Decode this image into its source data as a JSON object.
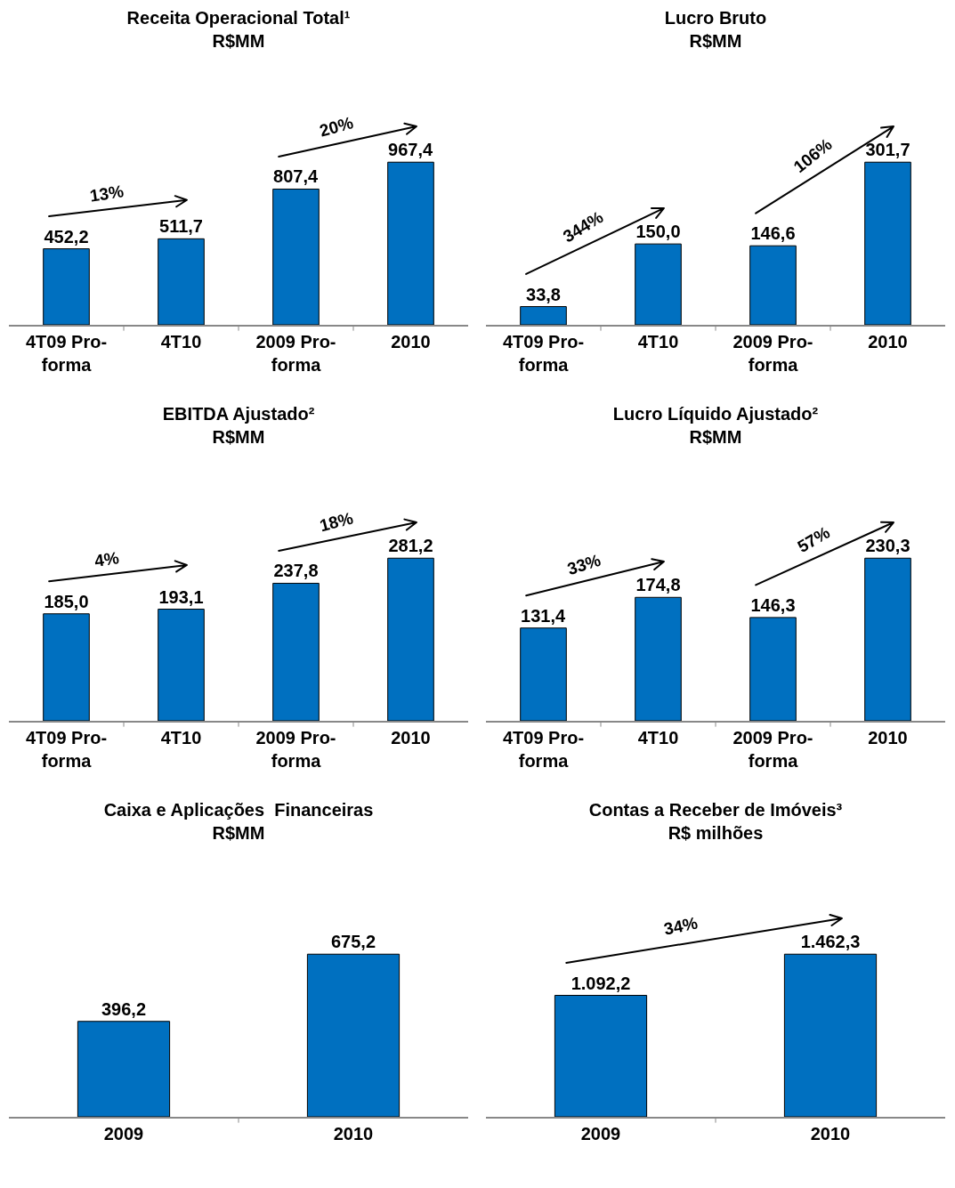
{
  "chart_data": [
    {
      "type": "bar",
      "title": "Receita Operacional Total¹",
      "subtitle": "R$MM",
      "categories": [
        "4T09 Pro-forma",
        "4T10",
        "2009 Pro-forma",
        "2010"
      ],
      "values": [
        452.2,
        511.7,
        807.4,
        967.4
      ],
      "value_labels": [
        "452,2",
        "511,7",
        "807,4",
        "967,4"
      ],
      "color": "#0070c0",
      "annotations": [
        "13%",
        "20%"
      ],
      "grid": false,
      "legend": false
    },
    {
      "type": "bar",
      "title": "Lucro Bruto",
      "subtitle": "R$MM",
      "categories": [
        "4T09 Pro-forma",
        "4T10",
        "2009 Pro-forma",
        "2010"
      ],
      "values": [
        33.8,
        150.0,
        146.6,
        301.7
      ],
      "value_labels": [
        "33,8",
        "150,0",
        "146,6",
        "301,7"
      ],
      "color": "#0070c0",
      "annotations": [
        "344%",
        "106%"
      ],
      "grid": false,
      "legend": false
    },
    {
      "type": "bar",
      "title": "EBITDA Ajustado²",
      "subtitle": "R$MM",
      "categories": [
        "4T09 Pro-forma",
        "4T10",
        "2009 Pro-forma",
        "2010"
      ],
      "values": [
        185.0,
        193.1,
        237.8,
        281.2
      ],
      "value_labels": [
        "185,0",
        "193,1",
        "237,8",
        "281,2"
      ],
      "color": "#0070c0",
      "annotations": [
        "4%",
        "18%"
      ],
      "grid": false,
      "legend": false
    },
    {
      "type": "bar",
      "title": "Lucro Líquido Ajustado²",
      "subtitle": "R$MM",
      "categories": [
        "4T09 Pro-forma",
        "4T10",
        "2009 Pro-forma",
        "2010"
      ],
      "values": [
        131.4,
        174.8,
        146.3,
        230.3
      ],
      "value_labels": [
        "131,4",
        "174,8",
        "146,3",
        "230,3"
      ],
      "color": "#0070c0",
      "annotations": [
        "33%",
        "57%"
      ],
      "grid": false,
      "legend": false
    },
    {
      "type": "bar",
      "title": "Caixa e Aplicações  Financeiras",
      "subtitle": "R$MM",
      "categories": [
        "2009",
        "2010"
      ],
      "values": [
        396.2,
        675.2
      ],
      "value_labels": [
        "396,2",
        "675,2"
      ],
      "color": "#0070c0",
      "grid": false,
      "legend": false
    },
    {
      "type": "bar",
      "title": "Contas a Receber de Imóveis³",
      "subtitle": "R$ milhões",
      "categories": [
        "2009",
        "2010"
      ],
      "values": [
        1092.2,
        1462.3
      ],
      "value_labels": [
        "1.092,2",
        "1.462,3"
      ],
      "color": "#0070c0",
      "annotations": [
        "34%"
      ],
      "grid": false,
      "legend": false
    }
  ]
}
